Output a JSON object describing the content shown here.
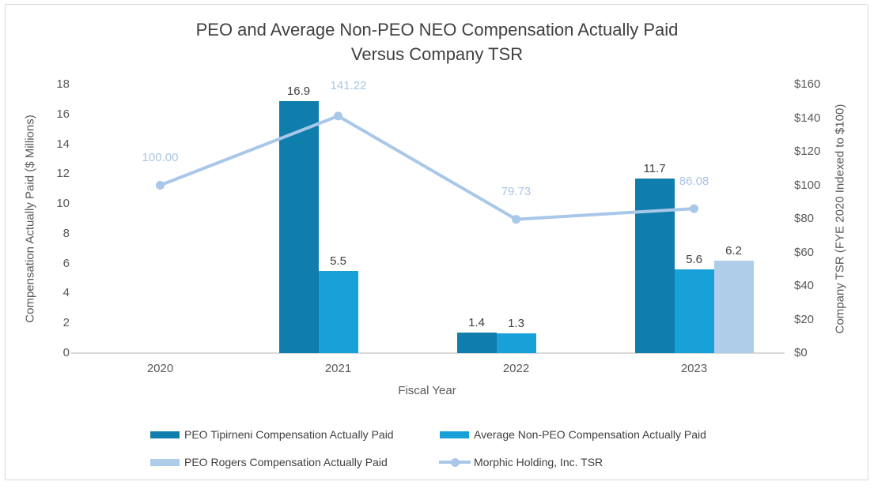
{
  "chart_data": {
    "type": "bar+line",
    "title_line1": "PEO and Average Non-PEO NEO Compensation Actually Paid",
    "title_line2": "Versus Company TSR",
    "categories": [
      "2020",
      "2021",
      "2022",
      "2023"
    ],
    "xlabel": "Fiscal Year",
    "left_axis": {
      "label": "Compensation Actually Paid ($ Millions)",
      "tick_labels": [
        "0",
        "2",
        "4",
        "6",
        "8",
        "10",
        "12",
        "14",
        "16",
        "18"
      ],
      "tick_values": [
        0,
        2,
        4,
        6,
        8,
        10,
        12,
        14,
        16,
        18
      ],
      "range": [
        0,
        18
      ]
    },
    "right_axis": {
      "label": "Company TSR (FYE 2020 Indexed to $100)",
      "tick_labels": [
        "$0",
        "$20",
        "$40",
        "$60",
        "$80",
        "$100",
        "$120",
        "$140",
        "$160"
      ],
      "tick_values": [
        0,
        20,
        40,
        60,
        80,
        100,
        120,
        140,
        160
      ],
      "range": [
        0,
        160
      ]
    },
    "series": [
      {
        "name": "PEO Tipirneni Compensation Actually Paid",
        "type": "bar",
        "axis": "left",
        "color": "#0F7EAC",
        "values": [
          null,
          16.9,
          1.4,
          11.7
        ],
        "data_labels": [
          "",
          "16.9",
          "1.4",
          "11.7"
        ]
      },
      {
        "name": "Average Non-PEO Compensation Actually Paid",
        "type": "bar",
        "axis": "left",
        "color": "#18A0D8",
        "values": [
          null,
          5.5,
          1.3,
          5.6
        ],
        "data_labels": [
          "",
          "5.5",
          "1.3",
          "5.6"
        ]
      },
      {
        "name": "PEO Rogers Compensation Actually Paid",
        "type": "bar",
        "axis": "left",
        "color": "#AECDE8",
        "values": [
          null,
          null,
          null,
          6.2
        ],
        "data_labels": [
          "",
          "",
          "",
          "6.2"
        ]
      },
      {
        "name": "Morphic Holding, Inc. TSR",
        "type": "line",
        "axis": "right",
        "color": "#A9C7E8",
        "values": [
          100.0,
          141.22,
          79.73,
          86.08
        ],
        "data_labels": [
          "100.00",
          "141.22",
          "79.73",
          "86.08"
        ]
      }
    ],
    "legend_position": "bottom",
    "grid": false
  },
  "colors": {
    "title_text": "#404040",
    "axis_text": "#595959",
    "bar_label_text": "#404040",
    "line_label_text": "#A9C6E6",
    "axis_line": "#D9D9D9",
    "chart_border": "#D9D9D9",
    "background": "#FFFFFF"
  }
}
